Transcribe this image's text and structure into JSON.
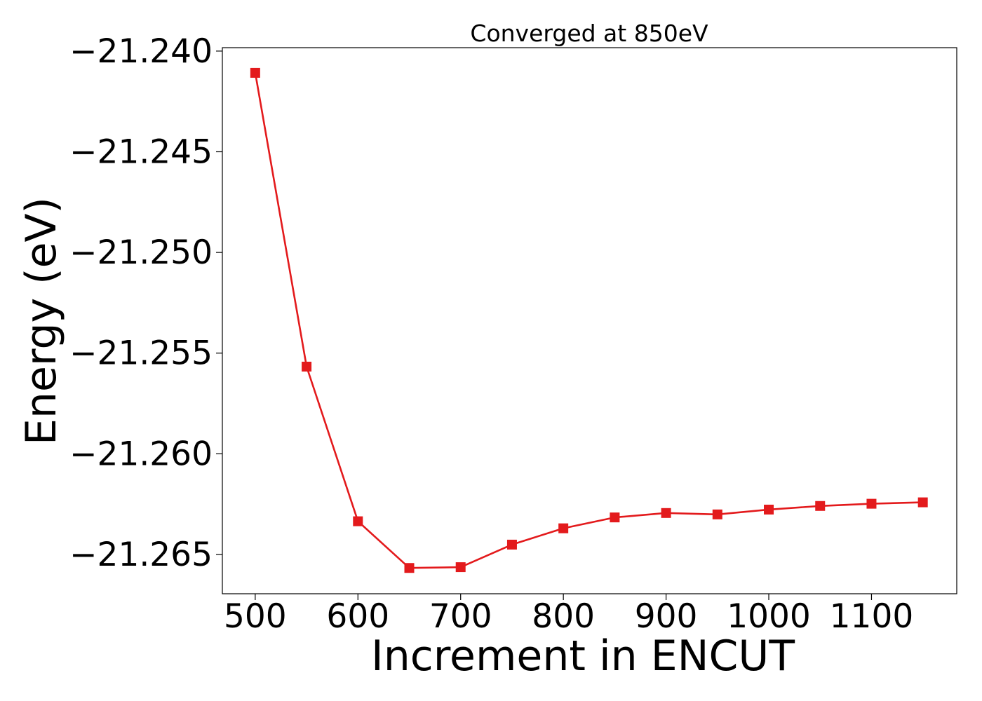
{
  "chart_data": {
    "type": "line",
    "title": "Converged at 850eV",
    "xlabel": "Increment in ENCUT",
    "ylabel": "Energy (eV)",
    "xlim": [
      468,
      1183
    ],
    "ylim": [
      -21.26695,
      -21.23983
    ],
    "xticks": [
      500,
      600,
      700,
      800,
      900,
      1000,
      1100
    ],
    "xtick_labels": [
      "500",
      "600",
      "700",
      "800",
      "900",
      "1000",
      "1100"
    ],
    "yticks": [
      -21.24,
      -21.245,
      -21.25,
      -21.255,
      -21.26,
      -21.265
    ],
    "ytick_labels": [
      "−21.240",
      "−21.245",
      "−21.250",
      "−21.255",
      "−21.260",
      "−21.265"
    ],
    "grid": false,
    "series": [
      {
        "color": "#e31a1c",
        "marker": "square",
        "x": [
          500,
          550,
          600,
          650,
          700,
          750,
          800,
          850,
          900,
          950,
          1000,
          1050,
          1100,
          1150
        ],
        "y": [
          -21.24108,
          -21.25567,
          -21.26335,
          -21.26567,
          -21.26563,
          -21.26451,
          -21.2637,
          -21.26316,
          -21.26294,
          -21.26301,
          -21.26277,
          -21.26259,
          -21.26248,
          -21.26241
        ]
      }
    ]
  }
}
